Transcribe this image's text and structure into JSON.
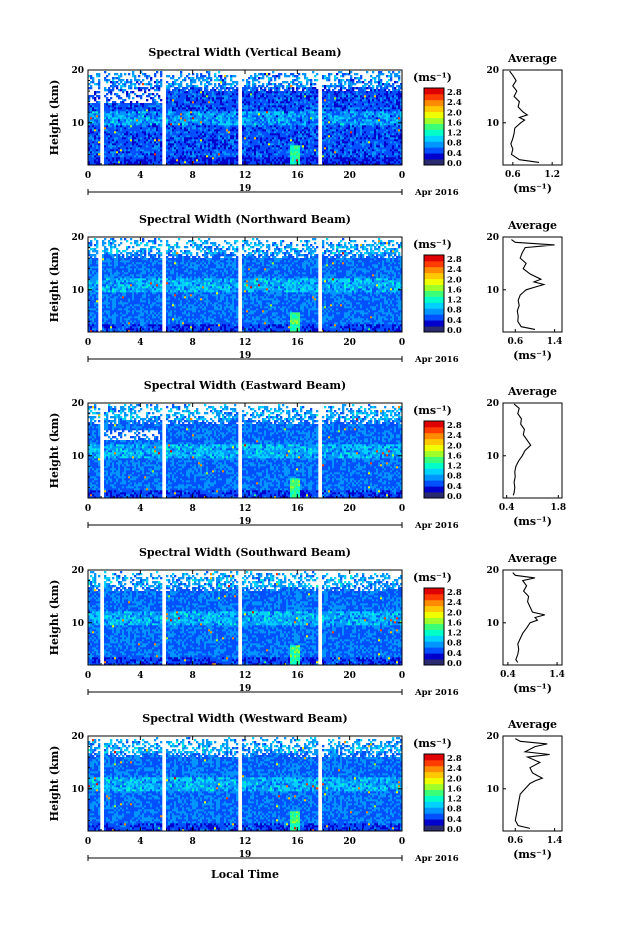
{
  "figure": {
    "xlabel": "Local Time",
    "date_label": "Apr 2016",
    "day_label": "19",
    "colorbar_unit": "(ms⁻¹)",
    "colorbar_ticks": [
      "2.8",
      "2.4",
      "2.0",
      "1.6",
      "1.2",
      "0.8",
      "0.4",
      "0.0"
    ],
    "colorbar_colors": [
      "#2a2a6e",
      "#0000cd",
      "#0050ff",
      "#0096ff",
      "#00d2ff",
      "#00ffc8",
      "#3cff78",
      "#a0ff28",
      "#f0ff00",
      "#ffc800",
      "#ff8c00",
      "#ff3c00",
      "#e10000"
    ],
    "avg_title": "Average",
    "avg_xlabel": "(ms⁻¹)"
  },
  "chart_data": [
    {
      "type": "heatmap",
      "title": "Spectral Width (Vertical Beam)",
      "ylabel": "Height (km)",
      "xlim": [
        0,
        24
      ],
      "ylim": [
        2,
        20
      ],
      "x_ticks": [
        "0",
        "4",
        "8",
        "12",
        "16",
        "20",
        "0"
      ],
      "y_ticks": [
        "20",
        "10"
      ],
      "data_gaps_hours": [
        [
          0.9,
          1.2
        ],
        [
          5.7,
          6.0
        ],
        [
          11.5,
          11.8
        ],
        [
          17.6,
          17.9
        ]
      ],
      "dominant_value_ms": 0.5,
      "average_profile": {
        "title": "Average",
        "xlabel": "(ms⁻¹)",
        "x_ticks": [
          "0.6",
          "1.2"
        ],
        "xlim": [
          0.45,
          1.35
        ],
        "y_ticks": [
          "20",
          "10"
        ],
        "height_km": [
          2.5,
          3,
          4,
          5,
          6,
          7,
          8,
          9,
          10,
          10.5,
          11,
          11.5,
          12,
          12.5,
          13,
          14,
          15,
          16,
          17,
          18,
          19,
          19.8
        ],
        "value_ms": [
          1.0,
          0.7,
          0.58,
          0.6,
          0.57,
          0.6,
          0.62,
          0.63,
          0.72,
          0.78,
          0.7,
          0.82,
          0.76,
          0.72,
          0.68,
          0.7,
          0.62,
          0.66,
          0.6,
          0.65,
          0.6,
          0.55
        ]
      }
    },
    {
      "type": "heatmap",
      "title": "Spectral Width (Northward Beam)",
      "ylabel": "Height (km)",
      "xlim": [
        0,
        24
      ],
      "ylim": [
        2,
        20
      ],
      "x_ticks": [
        "0",
        "4",
        "8",
        "12",
        "16",
        "20",
        "0"
      ],
      "y_ticks": [
        "20",
        "10"
      ],
      "data_gaps_hours": [
        [
          0.7,
          1.0
        ],
        [
          5.7,
          6.0
        ],
        [
          11.5,
          11.8
        ],
        [
          17.6,
          17.9
        ]
      ],
      "dominant_value_ms": 0.6,
      "average_profile": {
        "title": "Average",
        "xlabel": "(ms⁻¹)",
        "x_ticks": [
          "0.6",
          "1.4"
        ],
        "xlim": [
          0.35,
          1.55
        ],
        "y_ticks": [
          "20",
          "10"
        ],
        "height_km": [
          2.5,
          3,
          4,
          5,
          6,
          7,
          8,
          9,
          9.5,
          10,
          10.5,
          11,
          11.5,
          12,
          13,
          14,
          15,
          16,
          17,
          18,
          18.5,
          19,
          19.5
        ],
        "value_ms": [
          1.0,
          0.72,
          0.65,
          0.66,
          0.64,
          0.68,
          0.66,
          0.7,
          0.76,
          0.82,
          1.0,
          1.18,
          0.98,
          1.12,
          0.9,
          0.76,
          0.82,
          0.7,
          0.74,
          0.8,
          1.4,
          0.6,
          0.52
        ]
      }
    },
    {
      "type": "heatmap",
      "title": "Spectral Width (Eastward Beam)",
      "ylabel": "Height (km)",
      "xlim": [
        0,
        24
      ],
      "ylim": [
        2,
        20
      ],
      "x_ticks": [
        "0",
        "4",
        "8",
        "12",
        "16",
        "20",
        "0"
      ],
      "y_ticks": [
        "20",
        "10"
      ],
      "data_gaps_hours": [
        [
          0.9,
          1.2
        ],
        [
          5.7,
          6.0
        ],
        [
          11.5,
          11.8
        ],
        [
          17.6,
          17.9
        ]
      ],
      "dominant_value_ms": 0.6,
      "average_profile": {
        "title": "Average",
        "xlabel": "(ms⁻¹)",
        "x_ticks": [
          "0.4",
          "1.8"
        ],
        "xlim": [
          0.3,
          1.9
        ],
        "y_ticks": [
          "20",
          "10"
        ],
        "height_km": [
          2.5,
          3,
          4,
          5,
          6,
          7,
          8,
          9,
          10,
          11,
          12,
          12.5,
          13,
          14,
          15,
          16,
          17,
          18,
          19,
          19.8
        ],
        "value_ms": [
          0.58,
          0.6,
          0.62,
          0.6,
          0.63,
          0.62,
          0.65,
          0.72,
          0.82,
          0.9,
          1.05,
          1.0,
          0.95,
          0.85,
          0.88,
          0.78,
          0.8,
          0.7,
          0.74,
          0.6
        ]
      }
    },
    {
      "type": "heatmap",
      "title": "Spectral Width (Southward Beam)",
      "ylabel": "Height (km)",
      "xlim": [
        0,
        24
      ],
      "ylim": [
        2,
        20
      ],
      "x_ticks": [
        "0",
        "4",
        "8",
        "12",
        "16",
        "20",
        "0"
      ],
      "y_ticks": [
        "20",
        "10"
      ],
      "data_gaps_hours": [
        [
          0.9,
          1.2
        ],
        [
          5.7,
          6.0
        ],
        [
          11.5,
          11.8
        ],
        [
          17.6,
          17.9
        ]
      ],
      "dominant_value_ms": 0.6,
      "average_profile": {
        "title": "Average",
        "xlabel": "(ms⁻¹)",
        "x_ticks": [
          "0.4",
          "1.4"
        ],
        "xlim": [
          0.3,
          1.5
        ],
        "y_ticks": [
          "20",
          "10"
        ],
        "height_km": [
          2.5,
          3,
          4,
          5,
          6,
          7,
          8,
          9,
          10,
          10.5,
          11,
          11.5,
          12,
          13,
          14,
          15,
          16,
          17,
          18,
          18.5,
          19,
          19.5
        ],
        "value_ms": [
          0.6,
          0.56,
          0.6,
          0.62,
          0.6,
          0.65,
          0.7,
          0.78,
          0.85,
          1.0,
          0.95,
          1.15,
          0.9,
          0.85,
          0.8,
          0.82,
          0.72,
          0.78,
          0.7,
          0.95,
          0.55,
          0.5
        ]
      }
    },
    {
      "type": "heatmap",
      "title": "Spectral Width (Westward Beam)",
      "ylabel": "Height (km)",
      "xlim": [
        0,
        24
      ],
      "ylim": [
        2,
        20
      ],
      "x_ticks": [
        "0",
        "4",
        "8",
        "12",
        "16",
        "20",
        "0"
      ],
      "y_ticks": [
        "20",
        "10"
      ],
      "data_gaps_hours": [
        [
          0.9,
          1.2
        ],
        [
          5.7,
          6.0
        ],
        [
          11.5,
          11.8
        ],
        [
          17.6,
          17.9
        ]
      ],
      "dominant_value_ms": 0.6,
      "average_profile": {
        "title": "Average",
        "xlabel": "(ms⁻¹)",
        "x_ticks": [
          "0.6",
          "1.4"
        ],
        "xlim": [
          0.35,
          1.55
        ],
        "y_ticks": [
          "20",
          "10"
        ],
        "height_km": [
          2.5,
          3,
          4,
          5,
          6,
          7,
          8,
          9,
          10,
          11,
          11.5,
          12,
          12.5,
          13,
          14,
          15,
          16,
          16.5,
          17,
          18,
          18.5,
          19,
          19.5
        ],
        "value_ms": [
          0.9,
          0.66,
          0.6,
          0.62,
          0.64,
          0.66,
          0.68,
          0.7,
          0.8,
          0.9,
          1.0,
          1.15,
          1.05,
          0.95,
          0.9,
          1.1,
          0.85,
          1.3,
          0.8,
          1.0,
          1.25,
          0.7,
          0.6
        ]
      }
    }
  ]
}
